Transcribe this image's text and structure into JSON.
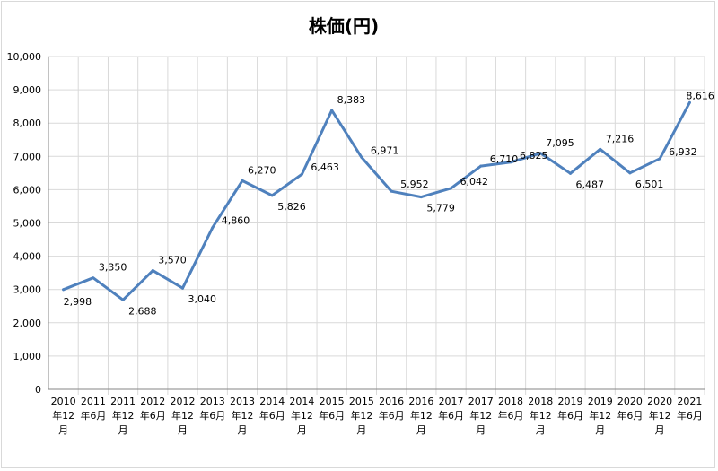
{
  "chart_data": {
    "type": "line",
    "title": "株価(円)",
    "xlabel": "",
    "ylabel": "",
    "ylim": [
      0,
      10000
    ],
    "ytick_step": 1000,
    "grid": true,
    "legend": "none",
    "line_color": "#4f81bd",
    "categories": [
      [
        "2010",
        "年12",
        "月"
      ],
      [
        "2011",
        "年6月",
        ""
      ],
      [
        "2011",
        "年12",
        "月"
      ],
      [
        "2012",
        "年6月",
        ""
      ],
      [
        "2012",
        "年12",
        "月"
      ],
      [
        "2013",
        "年6月",
        ""
      ],
      [
        "2013",
        "年12",
        "月"
      ],
      [
        "2014",
        "年6月",
        ""
      ],
      [
        "2014",
        "年12",
        "月"
      ],
      [
        "2015",
        "年6月",
        ""
      ],
      [
        "2015",
        "年12",
        "月"
      ],
      [
        "2016",
        "年6月",
        ""
      ],
      [
        "2016",
        "年12",
        "月"
      ],
      [
        "2017",
        "年6月",
        ""
      ],
      [
        "2017",
        "年12",
        "月"
      ],
      [
        "2018",
        "年6月",
        ""
      ],
      [
        "2018",
        "年12",
        "月"
      ],
      [
        "2019",
        "年6月",
        ""
      ],
      [
        "2019",
        "年12",
        "月"
      ],
      [
        "2020",
        "年6月",
        ""
      ],
      [
        "2020",
        "年12",
        "月"
      ],
      [
        "2021",
        "年6月",
        ""
      ]
    ],
    "values": [
      2998,
      3350,
      2688,
      3570,
      3040,
      4860,
      6270,
      5826,
      6463,
      8383,
      6971,
      5952,
      5779,
      6042,
      6710,
      6825,
      7095,
      6487,
      7216,
      6501,
      6932,
      8616
    ],
    "data_labels": [
      "2,998",
      "3,350",
      "2,688",
      "3,570",
      "3,040",
      "4,860",
      "6,270",
      "5,826",
      "6,463",
      "8,383",
      "6,971",
      "5,952",
      "5,779",
      "6,042",
      "6,710",
      "6,825",
      "7,095",
      "6,487",
      "7,216",
      "6,501",
      "6,932",
      "8,616"
    ],
    "ytick_labels": [
      "0",
      "1,000",
      "2,000",
      "3,000",
      "4,000",
      "5,000",
      "6,000",
      "7,000",
      "8,000",
      "9,000",
      "10,000"
    ]
  }
}
